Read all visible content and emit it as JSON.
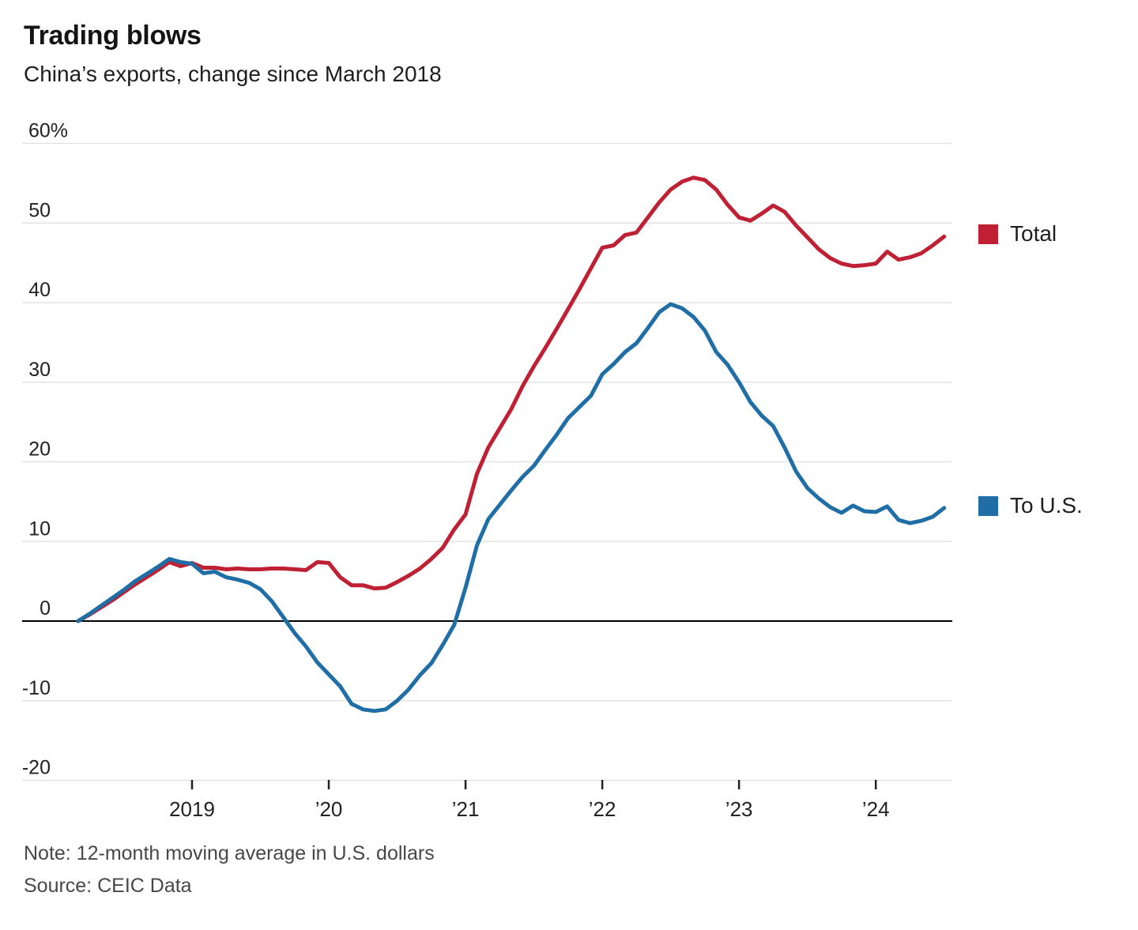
{
  "header": {
    "title": "Trading blows",
    "subtitle": "China’s exports, change since March 2018"
  },
  "footer": {
    "note": "Note: 12-month moving average in U.S. dollars",
    "source": "Source: CEIC Data"
  },
  "legend": {
    "items": [
      {
        "label": "Total",
        "color_key": "total"
      },
      {
        "label": "To U.S.",
        "color_key": "to_us"
      }
    ]
  },
  "colors": {
    "total": "#bf2033",
    "to_us": "#1f6fa6",
    "grid": "#e3e3e3",
    "zero_line": "#000000",
    "axis_text": "#222222",
    "tick_mark": "#222222",
    "muted_text": "#474747"
  },
  "chart_data": {
    "type": "line",
    "title": "Trading blows",
    "subtitle": "China’s exports, change since March 2018",
    "unit": "percent change since March 2018",
    "x": [
      "2018-03",
      "2018-04",
      "2018-05",
      "2018-06",
      "2018-07",
      "2018-08",
      "2018-09",
      "2018-10",
      "2018-11",
      "2018-12",
      "2019-01",
      "2019-02",
      "2019-03",
      "2019-04",
      "2019-05",
      "2019-06",
      "2019-07",
      "2019-08",
      "2019-09",
      "2019-10",
      "2019-11",
      "2019-12",
      "2020-01",
      "2020-02",
      "2020-03",
      "2020-04",
      "2020-05",
      "2020-06",
      "2020-07",
      "2020-08",
      "2020-09",
      "2020-10",
      "2020-11",
      "2020-12",
      "2021-01",
      "2021-02",
      "2021-03",
      "2021-04",
      "2021-05",
      "2021-06",
      "2021-07",
      "2021-08",
      "2021-09",
      "2021-10",
      "2021-11",
      "2021-12",
      "2022-01",
      "2022-02",
      "2022-03",
      "2022-04",
      "2022-05",
      "2022-06",
      "2022-07",
      "2022-08",
      "2022-09",
      "2022-10",
      "2022-11",
      "2022-12",
      "2023-01",
      "2023-02",
      "2023-03",
      "2023-04",
      "2023-05",
      "2023-06",
      "2023-07",
      "2023-08",
      "2023-09",
      "2023-10",
      "2023-11",
      "2023-12",
      "2024-01",
      "2024-02",
      "2024-03",
      "2024-04",
      "2024-05",
      "2024-06",
      "2024-07"
    ],
    "series": [
      {
        "name": "Total",
        "color": "#bf2033",
        "values": [
          0,
          0.8,
          1.7,
          2.6,
          3.6,
          4.6,
          5.5,
          6.4,
          7.4,
          6.9,
          7.3,
          6.7,
          6.7,
          6.5,
          6.6,
          6.5,
          6.5,
          6.6,
          6.6,
          6.5,
          6.4,
          7.4,
          7.3,
          5.5,
          4.5,
          4.5,
          4.1,
          4.2,
          4.9,
          5.7,
          6.6,
          7.8,
          9.2,
          11.5,
          13.4,
          18.5,
          21.8,
          24.2,
          26.6,
          29.5,
          32.0,
          34.3,
          36.7,
          39.2,
          41.7,
          44.3,
          46.9,
          47.2,
          48.5,
          48.8,
          50.7,
          52.6,
          54.2,
          55.2,
          55.7,
          55.4,
          54.2,
          52.3,
          50.7,
          50.3,
          51.2,
          52.2,
          51.4,
          49.7,
          48.2,
          46.7,
          45.6,
          44.9,
          44.6,
          44.7,
          44.9,
          46.4,
          45.4,
          45.7,
          46.2,
          47.2,
          48.3
        ]
      },
      {
        "name": "To U.S.",
        "color": "#1f6fa6",
        "values": [
          0,
          0.9,
          1.9,
          2.9,
          3.9,
          5.0,
          5.9,
          6.8,
          7.8,
          7.4,
          7.2,
          6.0,
          6.2,
          5.5,
          5.2,
          4.8,
          4.0,
          2.5,
          0.5,
          -1.5,
          -3.2,
          -5.2,
          -6.7,
          -8.2,
          -10.4,
          -11.1,
          -11.3,
          -11.1,
          -10.0,
          -8.6,
          -6.8,
          -5.3,
          -3.0,
          -0.5,
          4.2,
          9.5,
          12.8,
          14.6,
          16.4,
          18.1,
          19.5,
          21.5,
          23.4,
          25.5,
          26.9,
          28.3,
          31.0,
          32.3,
          33.8,
          34.9,
          36.8,
          38.8,
          39.8,
          39.3,
          38.2,
          36.5,
          33.8,
          32.2,
          30.0,
          27.5,
          25.8,
          24.5,
          21.8,
          18.8,
          16.7,
          15.4,
          14.3,
          13.6,
          14.5,
          13.8,
          13.7,
          14.4,
          12.7,
          12.3,
          12.6,
          13.1,
          14.2
        ]
      }
    ],
    "ylim": [
      -20,
      60
    ],
    "yticks": [
      60,
      50,
      40,
      30,
      20,
      10,
      0,
      -10,
      -20
    ],
    "ytick_labels": [
      "60%",
      "50",
      "40",
      "30",
      "20",
      "10",
      "0",
      "-10",
      "-20"
    ],
    "xticks": [
      {
        "label": "2019",
        "x_index": 10
      },
      {
        "label": "’20",
        "x_index": 22
      },
      {
        "label": "’21",
        "x_index": 34
      },
      {
        "label": "’22",
        "x_index": 46
      },
      {
        "label": "’23",
        "x_index": 58
      },
      {
        "label": "’24",
        "x_index": 70
      }
    ],
    "grid": "horizontal",
    "legend_position": "right",
    "baseline_y": 0
  }
}
